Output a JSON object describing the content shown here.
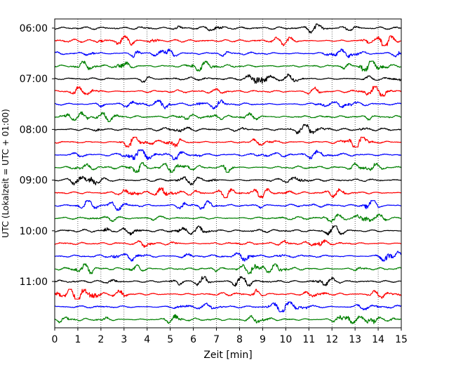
{
  "chart_data": {
    "type": "line",
    "xlabel": "Zeit  [min]",
    "ylabel": "UTC (Lokalzeit = UTC + 01:00)",
    "xlim": [
      0,
      15
    ],
    "xticks": [
      0,
      1,
      2,
      3,
      4,
      5,
      6,
      7,
      8,
      9,
      10,
      11,
      12,
      13,
      14,
      15
    ],
    "x_tick_labels": [
      "0",
      "1",
      "2",
      "3",
      "4",
      "5",
      "6",
      "7",
      "8",
      "9",
      "10",
      "11",
      "12",
      "13",
      "14",
      "15"
    ],
    "y_tick_labels": [
      {
        "label": "06:00",
        "trace": 0
      },
      {
        "label": "07:00",
        "trace": 4
      },
      {
        "label": "08:00",
        "trace": 8
      },
      {
        "label": "09:00",
        "trace": 12
      },
      {
        "label": "10:00",
        "trace": 16
      },
      {
        "label": "11:00",
        "trace": 20
      }
    ],
    "trace_count": 24,
    "trace_minutes": 15,
    "first_trace_utc": "06:00",
    "colors": [
      "#000000",
      "#ff0000",
      "#0000ff",
      "#008000"
    ],
    "grid": "vertical dotted at each minute",
    "series": [
      {
        "start": "06:00",
        "color": "#000000"
      },
      {
        "start": "06:15",
        "color": "#ff0000"
      },
      {
        "start": "06:30",
        "color": "#0000ff"
      },
      {
        "start": "06:45",
        "color": "#008000"
      },
      {
        "start": "07:00",
        "color": "#000000"
      },
      {
        "start": "07:15",
        "color": "#ff0000"
      },
      {
        "start": "07:30",
        "color": "#0000ff"
      },
      {
        "start": "07:45",
        "color": "#008000"
      },
      {
        "start": "08:00",
        "color": "#000000"
      },
      {
        "start": "08:15",
        "color": "#ff0000"
      },
      {
        "start": "08:30",
        "color": "#0000ff"
      },
      {
        "start": "08:45",
        "color": "#008000"
      },
      {
        "start": "09:00",
        "color": "#000000"
      },
      {
        "start": "09:15",
        "color": "#ff0000"
      },
      {
        "start": "09:30",
        "color": "#0000ff"
      },
      {
        "start": "09:45",
        "color": "#008000"
      },
      {
        "start": "10:00",
        "color": "#000000"
      },
      {
        "start": "10:15",
        "color": "#ff0000"
      },
      {
        "start": "10:30",
        "color": "#0000ff"
      },
      {
        "start": "10:45",
        "color": "#008000"
      },
      {
        "start": "11:00",
        "color": "#000000"
      },
      {
        "start": "11:15",
        "color": "#ff0000"
      },
      {
        "start": "11:30",
        "color": "#0000ff"
      },
      {
        "start": "11:45",
        "color": "#008000"
      }
    ]
  }
}
